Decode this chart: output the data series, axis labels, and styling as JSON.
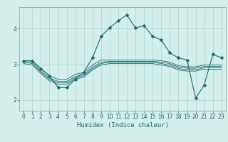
{
  "xlabel": "Humidex (Indice chaleur)",
  "ylabel": "",
  "background_color": "#d4eeeb",
  "grid_color": "#b0d8d4",
  "line_color": "#1a6b6b",
  "ylim": [
    1.7,
    4.6
  ],
  "xlim": [
    -0.5,
    23.5
  ],
  "yticks": [
    2,
    3,
    4
  ],
  "xticks": [
    0,
    1,
    2,
    3,
    4,
    5,
    6,
    7,
    8,
    9,
    10,
    11,
    12,
    13,
    14,
    15,
    16,
    17,
    18,
    19,
    20,
    21,
    22,
    23
  ],
  "series": [
    [
      3.1,
      3.1,
      2.88,
      2.68,
      2.58,
      2.58,
      2.72,
      2.78,
      2.98,
      3.12,
      3.12,
      3.12,
      3.12,
      3.12,
      3.12,
      3.12,
      3.1,
      3.06,
      2.96,
      2.93,
      2.93,
      2.98,
      2.98,
      2.98
    ],
    [
      3.06,
      3.02,
      2.78,
      2.58,
      2.48,
      2.48,
      2.62,
      2.68,
      2.88,
      3.02,
      3.06,
      3.06,
      3.06,
      3.06,
      3.06,
      3.06,
      3.02,
      2.98,
      2.88,
      2.85,
      2.85,
      2.9,
      2.9,
      2.9
    ],
    [
      3.02,
      2.98,
      2.74,
      2.54,
      2.44,
      2.44,
      2.58,
      2.64,
      2.84,
      2.98,
      3.02,
      3.02,
      3.02,
      3.02,
      3.02,
      3.02,
      2.98,
      2.94,
      2.84,
      2.81,
      2.81,
      2.86,
      2.86,
      2.86
    ],
    [
      3.08,
      3.06,
      2.82,
      2.62,
      2.52,
      2.52,
      2.66,
      2.72,
      2.92,
      3.06,
      3.08,
      3.08,
      3.08,
      3.08,
      3.08,
      3.08,
      3.06,
      3.02,
      2.92,
      2.89,
      2.89,
      2.94,
      2.94,
      2.94
    ]
  ],
  "main_series": [
    3.1,
    3.1,
    2.88,
    2.68,
    2.35,
    2.35,
    2.58,
    2.78,
    3.18,
    3.78,
    4.02,
    4.22,
    4.38,
    4.02,
    4.08,
    3.78,
    3.68,
    3.32,
    3.18,
    3.12,
    2.05,
    2.42,
    3.28,
    3.18
  ],
  "marker": "D",
  "markersize": 2.5,
  "linewidth": 0.8
}
